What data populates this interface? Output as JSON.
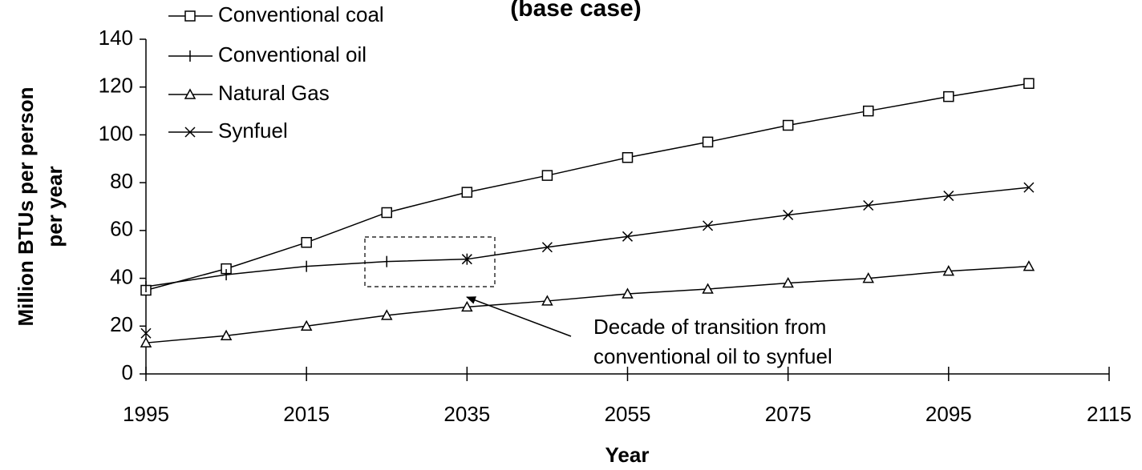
{
  "chart_data": {
    "type": "line",
    "title": "(base case)",
    "x_label": "Year",
    "y_label": [
      "Million BTUs per person",
      "per year"
    ],
    "x": [
      1995,
      2005,
      2015,
      2025,
      2035,
      2045,
      2055,
      2065,
      2075,
      2085,
      2095,
      2105
    ],
    "series": [
      {
        "name": "Conventional coal",
        "color": "#000000",
        "marker": "square",
        "values": [
          35,
          44,
          55,
          67.5,
          76,
          83,
          90.5,
          97,
          104,
          110,
          116,
          121.5
        ]
      },
      {
        "name": "Conventional oil",
        "color": "#000000",
        "marker": "plus",
        "values": [
          36.5,
          41.5,
          45,
          47,
          48,
          null,
          null,
          null,
          null,
          null,
          null,
          null
        ]
      },
      {
        "name": "Natural Gas",
        "color": "#000000",
        "marker": "triangle",
        "values": [
          13,
          16,
          20,
          24.5,
          28,
          30.5,
          33.5,
          35.5,
          38,
          40,
          43,
          45
        ]
      },
      {
        "name": "Synfuel",
        "color": "#000000",
        "marker": "x",
        "values": [
          17,
          null,
          null,
          null,
          48,
          53,
          57.5,
          62,
          66.5,
          70.5,
          74.5,
          78
        ]
      }
    ],
    "annotation": [
      "Decade of transition from",
      "conventional oil to synfuel"
    ],
    "xlim": [
      1995,
      2115
    ],
    "xticks": [
      1995,
      2015,
      2035,
      2055,
      2075,
      2095,
      2115
    ],
    "ylim": [
      0,
      140
    ],
    "yticks": [
      0,
      20,
      40,
      60,
      80,
      100,
      120,
      140
    ],
    "legend": "top-left",
    "grid": false
  }
}
